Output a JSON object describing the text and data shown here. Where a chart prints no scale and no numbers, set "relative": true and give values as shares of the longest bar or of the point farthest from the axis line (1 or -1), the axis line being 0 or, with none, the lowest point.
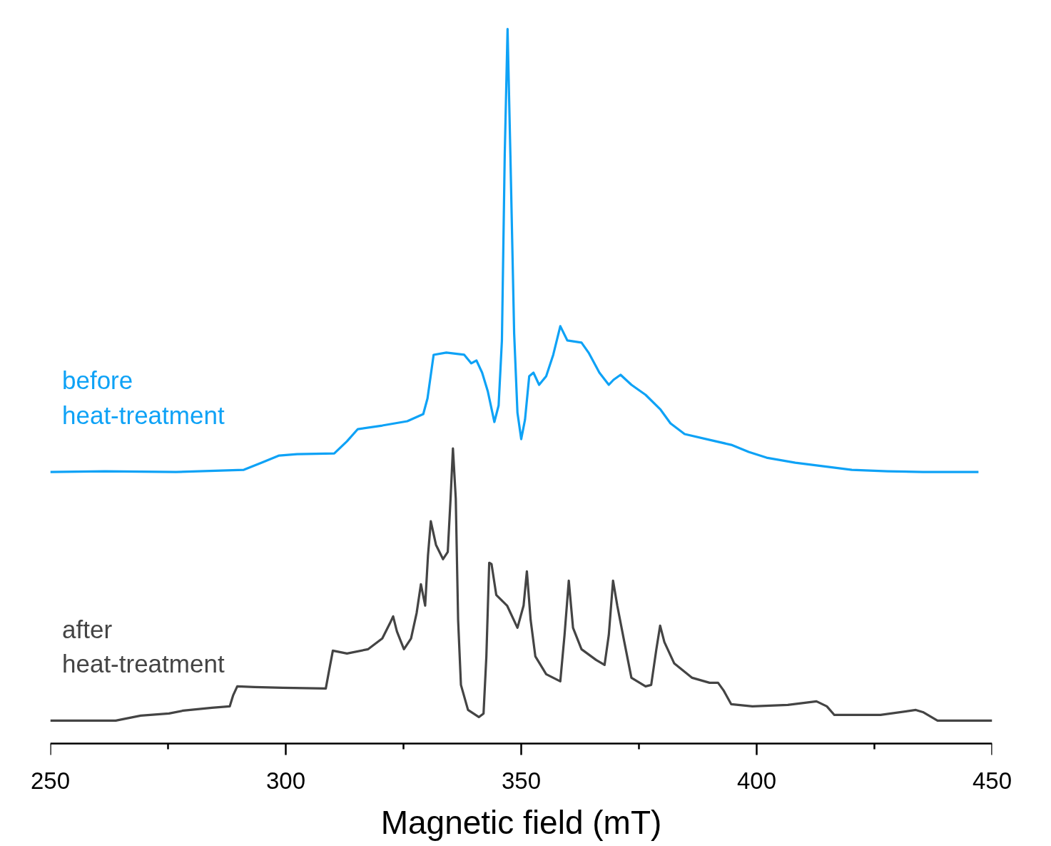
{
  "chart_data": {
    "type": "line",
    "relative": true,
    "xlabel": "Magnetic field (mT)",
    "xlim": [
      250,
      450
    ],
    "xticks": [
      250,
      {
        "value": 275,
        "label": null
      },
      300,
      {
        "value": 325,
        "label": null
      },
      350,
      {
        "value": 375,
        "label": null
      },
      400,
      {
        "value": 425,
        "label": null
      },
      450
    ],
    "tick_labels": "x",
    "grid": false,
    "legend": false,
    "marker": "none",
    "line_style": "solid",
    "series": [
      {
        "name": "before heat-treatment",
        "color": "#0ea2f6",
        "x": [
          250.0,
          261.6,
          276.7,
          291.1,
          294.9,
          298.6,
          302.4,
          310.3,
          313.0,
          315.3,
          320.5,
          325.8,
          329.2,
          330.1,
          331.4,
          334.1,
          337.9,
          339.4,
          340.5,
          341.7,
          342.9,
          344.3,
          345.2,
          345.9,
          346.5,
          347.1,
          347.7,
          348.5,
          349.2,
          350.0,
          350.8,
          351.7,
          352.6,
          353.8,
          355.3,
          356.8,
          358.3,
          359.8,
          362.8,
          364.4,
          366.6,
          368.6,
          369.6,
          371.1,
          373.4,
          376.4,
          379.5,
          381.7,
          384.7,
          390.0,
          394.6,
          398.3,
          402.1,
          408.2,
          414.2,
          420.2,
          427.8,
          435.3,
          447.1
        ],
        "values": [
          0.38,
          0.381,
          0.38,
          0.383,
          0.393,
          0.403,
          0.405,
          0.406,
          0.423,
          0.44,
          0.445,
          0.451,
          0.461,
          0.483,
          0.544,
          0.547,
          0.544,
          0.532,
          0.536,
          0.519,
          0.493,
          0.45,
          0.473,
          0.564,
          0.824,
          1.0,
          0.824,
          0.574,
          0.463,
          0.426,
          0.453,
          0.514,
          0.519,
          0.502,
          0.514,
          0.544,
          0.584,
          0.564,
          0.561,
          0.546,
          0.519,
          0.502,
          0.509,
          0.516,
          0.502,
          0.488,
          0.468,
          0.448,
          0.433,
          0.425,
          0.418,
          0.408,
          0.4,
          0.393,
          0.388,
          0.383,
          0.381,
          0.38,
          0.38
        ]
      },
      {
        "name": "after heat-treatment",
        "color": "#444444",
        "x": [
          250.0,
          263.9,
          265.4,
          269.2,
          275.2,
          278.2,
          284.3,
          288.1,
          288.8,
          289.7,
          293.4,
          299.4,
          308.5,
          309.2,
          310.0,
          313.0,
          317.5,
          320.5,
          322.1,
          322.8,
          323.6,
          325.1,
          326.6,
          327.8,
          328.7,
          329.6,
          330.2,
          330.8,
          331.9,
          333.4,
          334.4,
          335.0,
          335.5,
          336.1,
          336.6,
          337.2,
          338.7,
          341.0,
          342.0,
          342.6,
          343.2,
          343.7,
          344.7,
          347.0,
          349.2,
          350.5,
          351.2,
          352.0,
          353.0,
          355.3,
          358.3,
          359.2,
          360.1,
          361.0,
          362.8,
          365.9,
          367.7,
          368.6,
          369.5,
          370.4,
          371.9,
          373.4,
          376.4,
          377.6,
          378.7,
          379.5,
          380.4,
          382.5,
          386.3,
          390.0,
          391.8,
          393.0,
          394.6,
          399.1,
          406.6,
          412.7,
          414.9,
          416.5,
          426.3,
          433.8,
          435.3,
          438.4,
          450.0
        ],
        "values": [
          0.032,
          0.032,
          0.034,
          0.039,
          0.042,
          0.046,
          0.05,
          0.052,
          0.067,
          0.08,
          0.079,
          0.078,
          0.077,
          0.102,
          0.13,
          0.126,
          0.132,
          0.147,
          0.168,
          0.178,
          0.157,
          0.132,
          0.147,
          0.183,
          0.223,
          0.193,
          0.263,
          0.311,
          0.278,
          0.258,
          0.268,
          0.343,
          0.413,
          0.343,
          0.173,
          0.082,
          0.047,
          0.037,
          0.042,
          0.122,
          0.253,
          0.251,
          0.208,
          0.193,
          0.162,
          0.193,
          0.241,
          0.173,
          0.122,
          0.097,
          0.087,
          0.152,
          0.228,
          0.162,
          0.132,
          0.117,
          0.11,
          0.152,
          0.228,
          0.193,
          0.142,
          0.092,
          0.08,
          0.082,
          0.132,
          0.165,
          0.142,
          0.112,
          0.092,
          0.085,
          0.085,
          0.074,
          0.055,
          0.052,
          0.054,
          0.059,
          0.052,
          0.04,
          0.04,
          0.047,
          0.044,
          0.032,
          0.032
        ]
      }
    ]
  }
}
